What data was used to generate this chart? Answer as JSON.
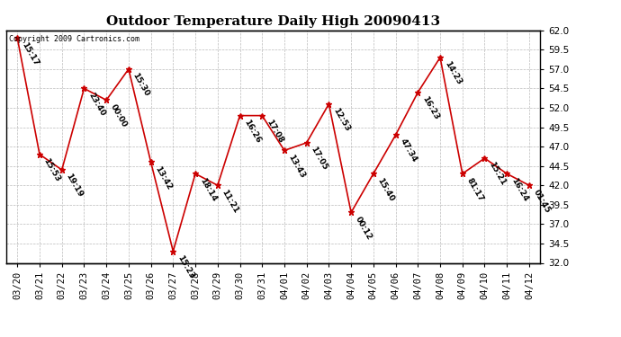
{
  "title": "Outdoor Temperature Daily High 20090413",
  "copyright_text": "Copyright 2009 Cartronics.com",
  "dates": [
    "03/20",
    "03/21",
    "03/22",
    "03/23",
    "03/24",
    "03/25",
    "03/26",
    "03/27",
    "03/28",
    "03/29",
    "03/30",
    "03/31",
    "04/01",
    "04/02",
    "04/03",
    "04/04",
    "04/05",
    "04/06",
    "04/07",
    "04/08",
    "04/09",
    "04/10",
    "04/11",
    "04/12"
  ],
  "values": [
    61.0,
    46.0,
    44.0,
    54.5,
    53.0,
    57.0,
    45.0,
    33.5,
    43.5,
    42.0,
    51.0,
    51.0,
    46.5,
    47.5,
    52.5,
    38.5,
    43.5,
    48.5,
    54.0,
    58.5,
    43.5,
    45.5,
    43.5,
    42.0
  ],
  "labels": [
    "15:17",
    "15:53",
    "19:19",
    "23:40",
    "00:00",
    "15:30",
    "13:42",
    "15:23",
    "18:14",
    "11:21",
    "16:26",
    "17:08",
    "13:43",
    "17:05",
    "12:53",
    "00:12",
    "15:40",
    "47:34",
    "16:23",
    "14:23",
    "81:17",
    "15:21",
    "16:24",
    "01:45"
  ],
  "ylim_min": 32.0,
  "ylim_max": 62.0,
  "yticks": [
    32.0,
    34.5,
    37.0,
    39.5,
    42.0,
    44.5,
    47.0,
    49.5,
    52.0,
    54.5,
    57.0,
    59.5,
    62.0
  ],
  "line_color": "#cc0000",
  "marker_color": "#cc0000",
  "grid_color": "#bbbbbb",
  "background_color": "#ffffff",
  "title_fontsize": 11,
  "label_fontsize": 6.5,
  "tick_fontsize": 7.5,
  "copyright_fontsize": 6
}
